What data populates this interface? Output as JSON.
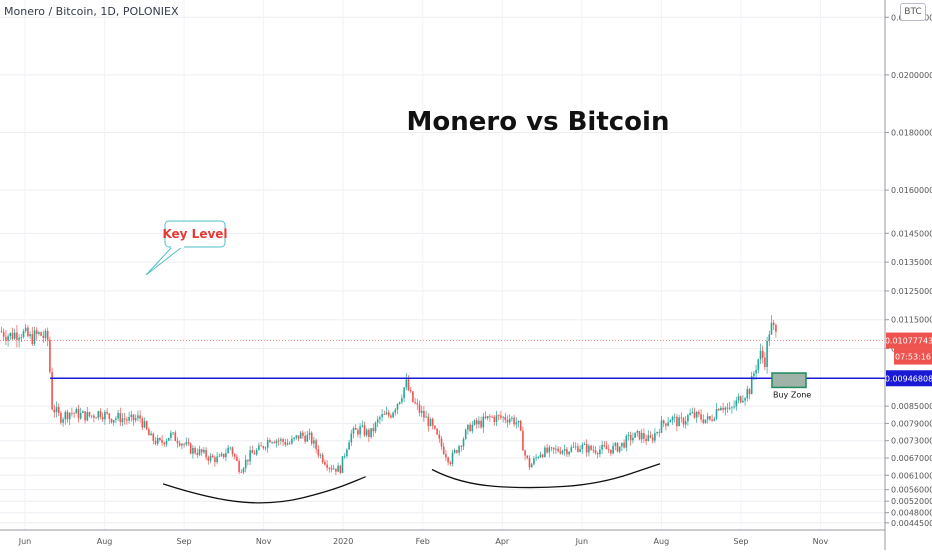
{
  "header": {
    "symbol": "Monero / Bitcoin, 1D, POLONIEX",
    "currency_badge": "BTC"
  },
  "colors": {
    "up": "#26a69a",
    "down": "#ef5350",
    "key_level_line": "#1a1ad6",
    "price_tag": "#ef5350",
    "key_tag": "#1a1ad6",
    "callout_border": "#4dc0c8",
    "callout_text": "#e53935",
    "buy_zone_fill": "#9fb3a9",
    "buy_zone_border": "#1f8a5a"
  },
  "chart_data": {
    "type": "candlestick",
    "title": "Monero vs Bitcoin",
    "y_axis": {
      "scale": "linear",
      "range": [
        0.0042,
        0.0226
      ],
      "tick_labels": [
        "0.00445000",
        "0.00480000",
        "0.00520000",
        "0.00560000",
        "0.00610000",
        "0.00670000",
        "0.00730000",
        "0.00790000",
        "0.00850000",
        "0.01050000",
        "0.01150000",
        "0.01250000",
        "0.01350000",
        "0.01450000",
        "0.01600000",
        "0.01800000",
        "0.02000000",
        "0.02200000"
      ]
    },
    "x_axis": {
      "tick_labels": [
        "Jun",
        "Aug",
        "Sep",
        "Nov",
        "2020",
        "Feb",
        "Apr",
        "Jun",
        "Aug",
        "Sep",
        "Nov"
      ]
    },
    "price_tags": {
      "last_price": "0.01077743",
      "countdown": "07:53:16",
      "key_level": "0.00946808"
    },
    "key_level_value": 0.00946808,
    "annotations": {
      "key_level_label": "Key Level",
      "buy_zone_label": "Buy Zone"
    },
    "buy_zone": {
      "low": 0.00915,
      "high": 0.00965
    },
    "grid": true,
    "price_path": [
      [
        0,
        0.0111
      ],
      [
        10,
        0.01095
      ],
      [
        20,
        0.0111
      ],
      [
        30,
        0.01085
      ],
      [
        40,
        0.011
      ],
      [
        48,
        0.0108
      ],
      [
        52,
        0.0085
      ],
      [
        60,
        0.0081
      ],
      [
        70,
        0.0083
      ],
      [
        80,
        0.0082
      ],
      [
        90,
        0.00815
      ],
      [
        100,
        0.0083
      ],
      [
        110,
        0.0081
      ],
      [
        120,
        0.0081
      ],
      [
        130,
        0.008
      ],
      [
        140,
        0.0081
      ],
      [
        150,
        0.0074
      ],
      [
        160,
        0.0072
      ],
      [
        170,
        0.0075
      ],
      [
        180,
        0.0073
      ],
      [
        190,
        0.007
      ],
      [
        200,
        0.0069
      ],
      [
        210,
        0.0067
      ],
      [
        220,
        0.00665
      ],
      [
        230,
        0.0071
      ],
      [
        240,
        0.0063
      ],
      [
        250,
        0.0068
      ],
      [
        260,
        0.007
      ],
      [
        270,
        0.0074
      ],
      [
        280,
        0.0073
      ],
      [
        290,
        0.0072
      ],
      [
        300,
        0.0075
      ],
      [
        310,
        0.0074
      ],
      [
        320,
        0.0068
      ],
      [
        330,
        0.0064
      ],
      [
        340,
        0.0063
      ],
      [
        350,
        0.0075
      ],
      [
        360,
        0.0077
      ],
      [
        370,
        0.0075
      ],
      [
        380,
        0.0081
      ],
      [
        390,
        0.0082
      ],
      [
        400,
        0.0088
      ],
      [
        406,
        0.0093
      ],
      [
        412,
        0.0087
      ],
      [
        420,
        0.0083
      ],
      [
        430,
        0.0079
      ],
      [
        440,
        0.0072
      ],
      [
        450,
        0.0066
      ],
      [
        460,
        0.0072
      ],
      [
        470,
        0.0078
      ],
      [
        480,
        0.0079
      ],
      [
        490,
        0.0081
      ],
      [
        500,
        0.0081
      ],
      [
        510,
        0.0081
      ],
      [
        518,
        0.0079
      ],
      [
        525,
        0.0068
      ],
      [
        530,
        0.0064
      ],
      [
        540,
        0.0069
      ],
      [
        550,
        0.0069
      ],
      [
        560,
        0.007
      ],
      [
        570,
        0.007
      ],
      [
        580,
        0.0071
      ],
      [
        590,
        0.007
      ],
      [
        600,
        0.007
      ],
      [
        610,
        0.007
      ],
      [
        620,
        0.0071
      ],
      [
        630,
        0.0074
      ],
      [
        640,
        0.0075
      ],
      [
        650,
        0.0073
      ],
      [
        660,
        0.0078
      ],
      [
        670,
        0.0081
      ],
      [
        680,
        0.0079
      ],
      [
        690,
        0.0082
      ],
      [
        700,
        0.0081
      ],
      [
        710,
        0.008
      ],
      [
        720,
        0.0086
      ],
      [
        730,
        0.0083
      ],
      [
        740,
        0.0088
      ],
      [
        750,
        0.0091
      ],
      [
        755,
        0.0098
      ],
      [
        760,
        0.0103
      ],
      [
        765,
        0.0101
      ],
      [
        770,
        0.0113
      ],
      [
        775,
        0.0111
      ],
      [
        778,
        0.0106
      ]
    ],
    "curves": [
      {
        "points": [
          [
            163,
            0.0058
          ],
          [
            212,
            0.00525
          ],
          [
            275,
            0.00508
          ],
          [
            330,
            0.00555
          ],
          [
            366,
            0.00605
          ]
        ]
      },
      {
        "points": [
          [
            432,
            0.0063
          ],
          [
            460,
            0.0058
          ],
          [
            530,
            0.00563
          ],
          [
            600,
            0.0058
          ],
          [
            660,
            0.0065
          ]
        ]
      }
    ],
    "chart_area": {
      "x_min": 0,
      "x_max": 885
    }
  }
}
